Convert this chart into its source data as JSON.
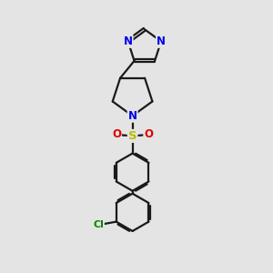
{
  "bg_color": "#e4e4e4",
  "bond_color": "#1a1a1a",
  "bond_width": 1.6,
  "dbo": 0.055,
  "N_color": "#0000ee",
  "O_color": "#dd0000",
  "S_color": "#bbbb00",
  "Cl_color": "#008800",
  "fs": 8.5,
  "fig_w": 3.0,
  "fig_h": 3.0,
  "xlim": [
    0,
    10
  ],
  "ylim": [
    0,
    10
  ]
}
